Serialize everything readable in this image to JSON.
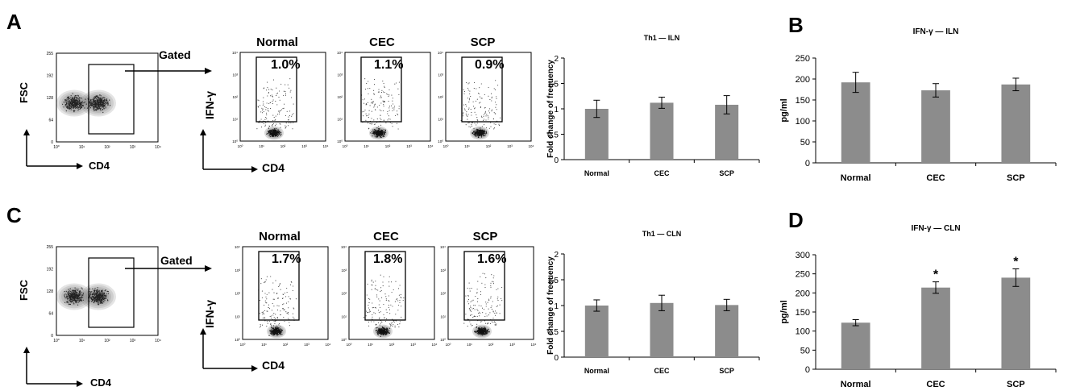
{
  "colors": {
    "bar": "#8c8c8c",
    "axis": "#000000",
    "density": "#6a6a6a",
    "dots": "#333333"
  },
  "panels": {
    "A": {
      "letter": "A"
    },
    "B": {
      "letter": "B"
    },
    "C": {
      "letter": "C"
    },
    "D": {
      "letter": "D"
    }
  },
  "flow_A": {
    "scatter": {
      "ylabel": "FSC",
      "xlabel": "CD4",
      "yticks": [
        "255",
        "192",
        "128",
        "64",
        "0"
      ],
      "xticks": [
        "10⁰",
        "10¹",
        "10²",
        "10³",
        "10⁴"
      ]
    },
    "gated": "Gated",
    "ylabel": "IFN-γ",
    "xlabel": "CD4",
    "yticks": [
      "10⁴",
      "10³",
      "10²",
      "10¹",
      "10⁰"
    ],
    "xticks": [
      "10⁰",
      "10¹",
      "10²",
      "10³",
      "10⁴"
    ],
    "groups": [
      {
        "name": "Normal",
        "percent": "1.0%"
      },
      {
        "name": "CEC",
        "percent": "1.1%"
      },
      {
        "name": "SCP",
        "percent": "0.9%"
      }
    ]
  },
  "flow_C": {
    "scatter": {
      "ylabel": "FSC",
      "xlabel": "CD4",
      "yticks": [
        "255",
        "192",
        "128",
        "64",
        "0"
      ],
      "xticks": [
        "10⁰",
        "10¹",
        "10²",
        "10³",
        "10⁴"
      ]
    },
    "gated": "Gated",
    "ylabel": "IFN-γ",
    "xlabel": "CD4",
    "yticks": [
      "10⁴",
      "10³",
      "10²",
      "10¹",
      "10⁰"
    ],
    "xticks": [
      "10⁰",
      "10¹",
      "10²",
      "10³",
      "10⁴"
    ],
    "groups": [
      {
        "name": "Normal",
        "percent": "1.7%"
      },
      {
        "name": "CEC",
        "percent": "1.8%"
      },
      {
        "name": "SCP",
        "percent": "1.6%"
      }
    ]
  },
  "chart_data": [
    {
      "id": "th1-iln",
      "type": "bar",
      "title": "Th1 — ILN",
      "ylabel": "Fold change of frequency",
      "categories": [
        "Normal",
        "CEC",
        "SCP"
      ],
      "values": [
        1.0,
        1.12,
        1.08
      ],
      "errors": [
        0.17,
        0.11,
        0.18
      ],
      "ylim": [
        0,
        2
      ],
      "yticks": [
        0,
        0.5,
        1,
        1.5,
        2
      ],
      "yticklabels": [
        "0",
        "0.5",
        "1",
        "1.5",
        "2"
      ],
      "grid": false
    },
    {
      "id": "ifng-iln",
      "type": "bar",
      "title": "IFN-γ — ILN",
      "ylabel": "pg/ml",
      "categories": [
        "Normal",
        "CEC",
        "SCP"
      ],
      "values": [
        192,
        173,
        187
      ],
      "errors": [
        24,
        16,
        15
      ],
      "ylim": [
        0,
        250
      ],
      "yticks": [
        0,
        50,
        100,
        150,
        200,
        250
      ],
      "yticklabels": [
        "0",
        "50",
        "100",
        "150",
        "200",
        "250"
      ],
      "grid": false
    },
    {
      "id": "th1-cln",
      "type": "bar",
      "title": "Th1 — CLN",
      "ylabel": "Fold change of frequency",
      "categories": [
        "Normal",
        "CEC",
        "SCP"
      ],
      "values": [
        1.0,
        1.05,
        1.01
      ],
      "errors": [
        0.11,
        0.15,
        0.11
      ],
      "ylim": [
        0,
        2
      ],
      "yticks": [
        0,
        0.5,
        1,
        1.5,
        2
      ],
      "yticklabels": [
        "0",
        "0.5",
        "1",
        "1.5",
        "2"
      ],
      "grid": false
    },
    {
      "id": "ifng-cln",
      "type": "bar",
      "title": "IFN-γ — CLN",
      "ylabel": "pg/ml",
      "categories": [
        "Normal",
        "CEC",
        "SCP"
      ],
      "values": [
        122,
        214,
        240
      ],
      "errors": [
        8,
        15,
        23
      ],
      "annotations": [
        "",
        "*",
        "*"
      ],
      "ylim": [
        0,
        300
      ],
      "yticks": [
        0,
        50,
        100,
        150,
        200,
        250,
        300
      ],
      "yticklabels": [
        "0",
        "50",
        "100",
        "150",
        "200",
        "250",
        "300"
      ],
      "grid": false
    }
  ]
}
